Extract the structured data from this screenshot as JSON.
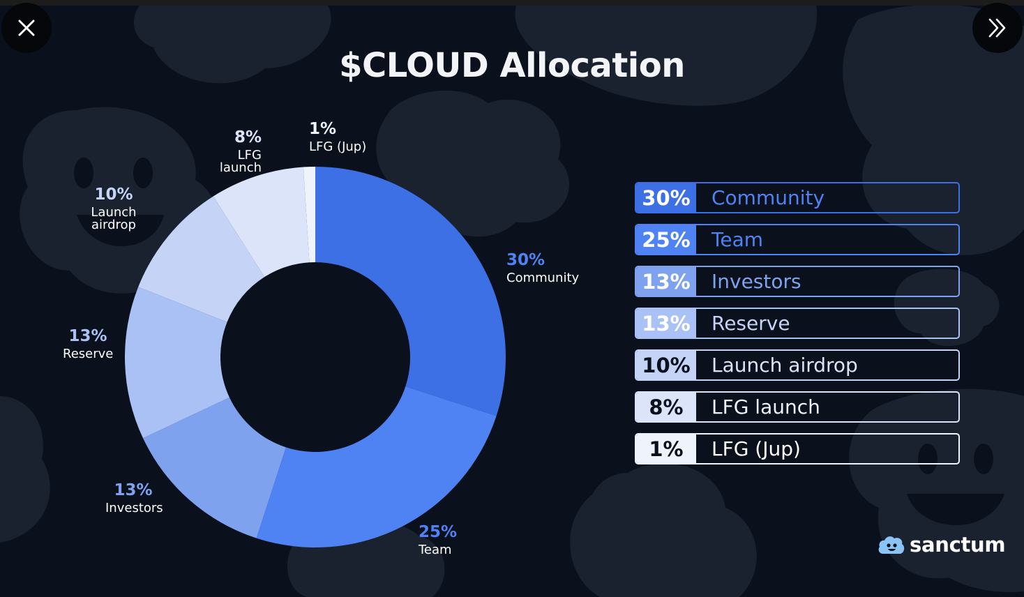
{
  "title": "$CLOUD Allocation",
  "chart_data": {
    "type": "pie",
    "title": "$CLOUD Allocation",
    "categories": [
      "Community",
      "Team",
      "Investors",
      "Reserve",
      "Launch airdrop",
      "LFG launch",
      "LFG (Jup)"
    ],
    "values": [
      30,
      25,
      13,
      13,
      10,
      8,
      1
    ],
    "labels": [
      "30%",
      "25%",
      "13%",
      "13%",
      "10%",
      "8%",
      "1%"
    ],
    "colors": [
      "#3d6fe5",
      "#4f82f3",
      "#7ea2ee",
      "#a9c1f4",
      "#c4d3f6",
      "#dbe4f9",
      "#eef3fc"
    ]
  },
  "legend": [
    {
      "pct": "30%",
      "label": "Community"
    },
    {
      "pct": "25%",
      "label": "Team"
    },
    {
      "pct": "13%",
      "label": "Investors"
    },
    {
      "pct": "13%",
      "label": "Reserve"
    },
    {
      "pct": "10%",
      "label": "Launch airdrop"
    },
    {
      "pct": "8%",
      "label": "LFG launch"
    },
    {
      "pct": "1%",
      "label": "LFG (Jup)"
    }
  ],
  "brand": {
    "name": "sanctum"
  },
  "icons": {
    "close": "close-icon",
    "next": "double-chevron-right-icon",
    "logo": "sanctum-cloud-logo"
  }
}
